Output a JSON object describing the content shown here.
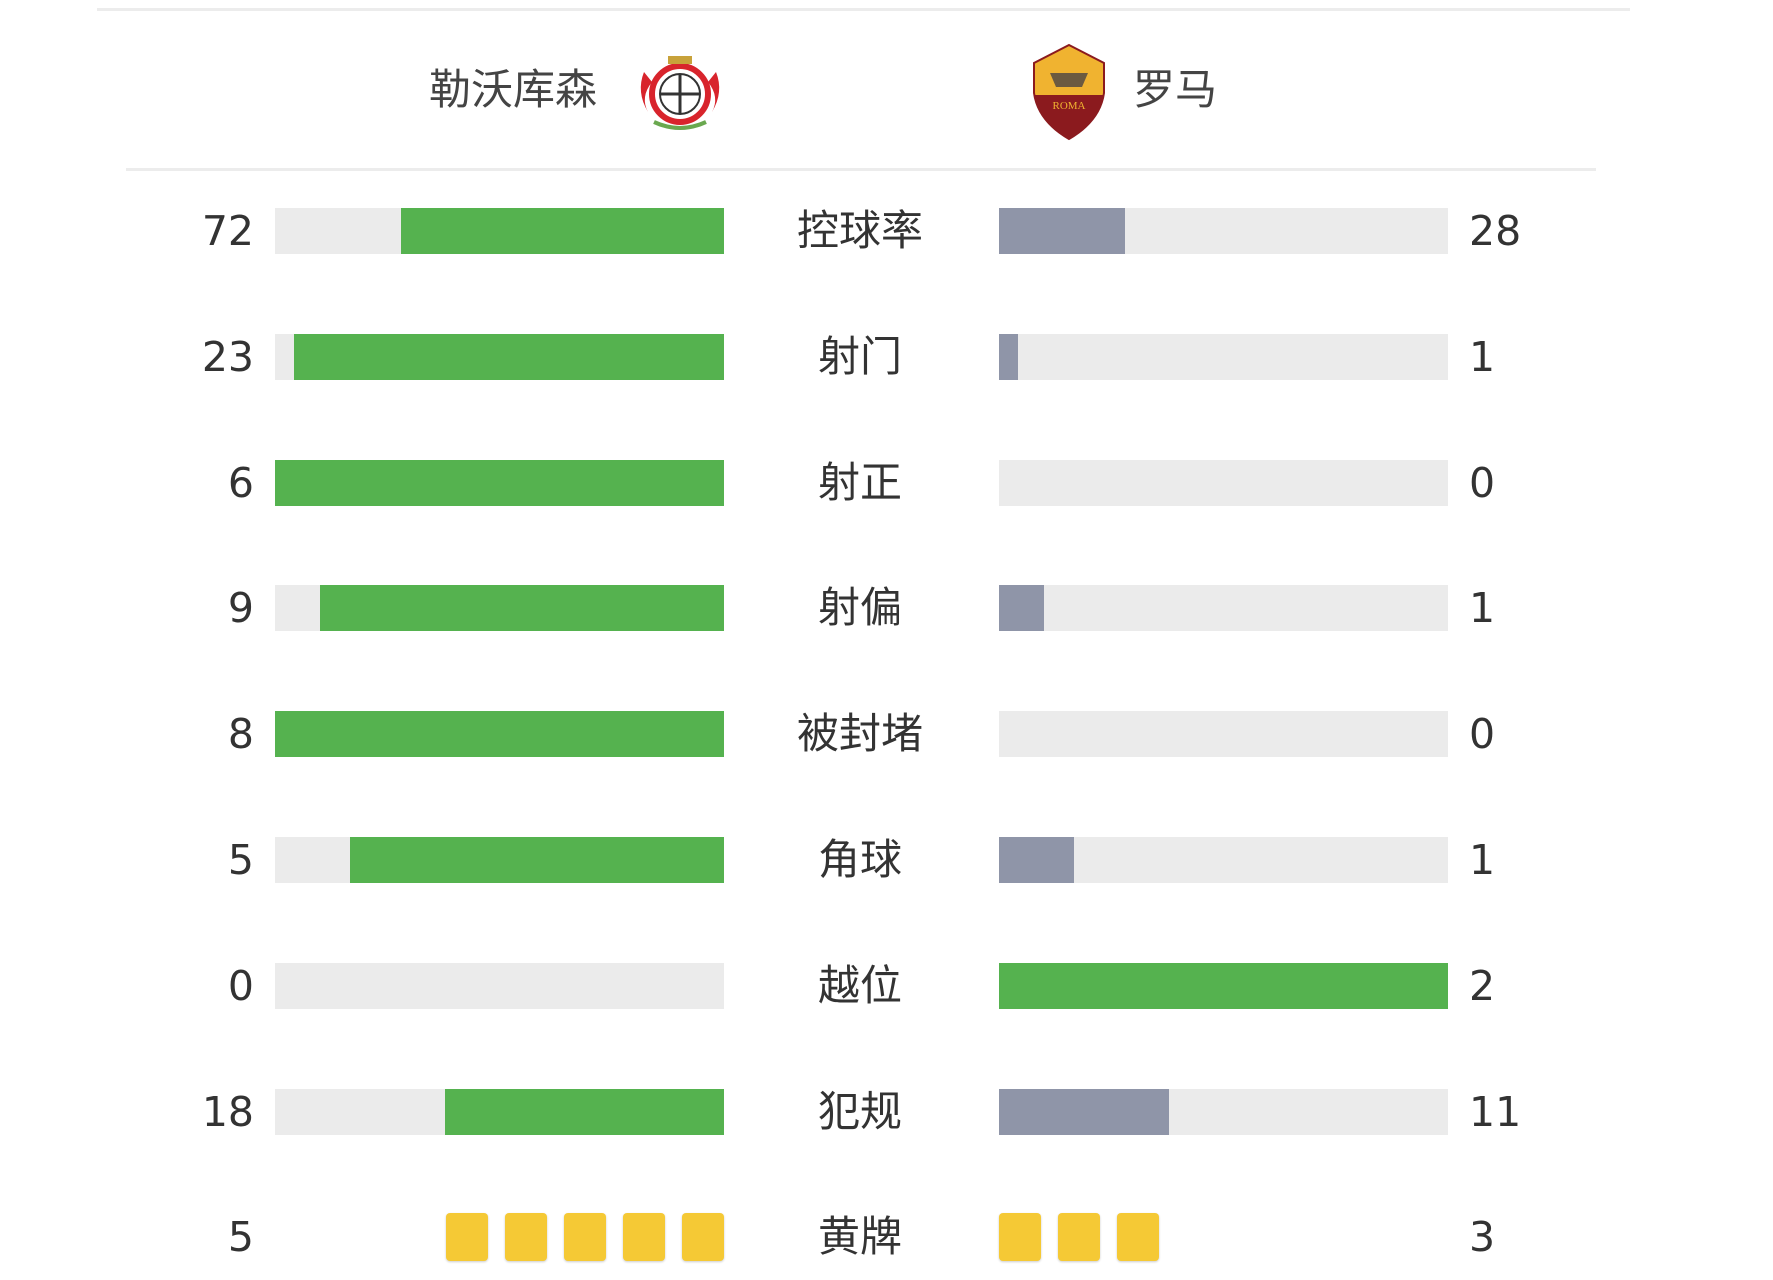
{
  "colors": {
    "leading": "#55b24f",
    "trailing": "#8f95a8",
    "track": "#ebebeb",
    "yellow_card": "#f5c935"
  },
  "home": {
    "name": "勒沃库森",
    "logo": "bayer-leverkusen-crest"
  },
  "away": {
    "name": "罗马",
    "logo": "as-roma-crest",
    "logo_text": "ROMA"
  },
  "stats": [
    {
      "label": "控球率",
      "home": 72,
      "away": 28
    },
    {
      "label": "射门",
      "home": 23,
      "away": 1
    },
    {
      "label": "射正",
      "home": 6,
      "away": 0
    },
    {
      "label": "射偏",
      "home": 9,
      "away": 1
    },
    {
      "label": "被封堵",
      "home": 8,
      "away": 0
    },
    {
      "label": "角球",
      "home": 5,
      "away": 1
    },
    {
      "label": "越位",
      "home": 0,
      "away": 2
    },
    {
      "label": "犯规",
      "home": 18,
      "away": 11
    }
  ],
  "yellow_cards": {
    "label": "黄牌",
    "home": 5,
    "away": 3
  }
}
